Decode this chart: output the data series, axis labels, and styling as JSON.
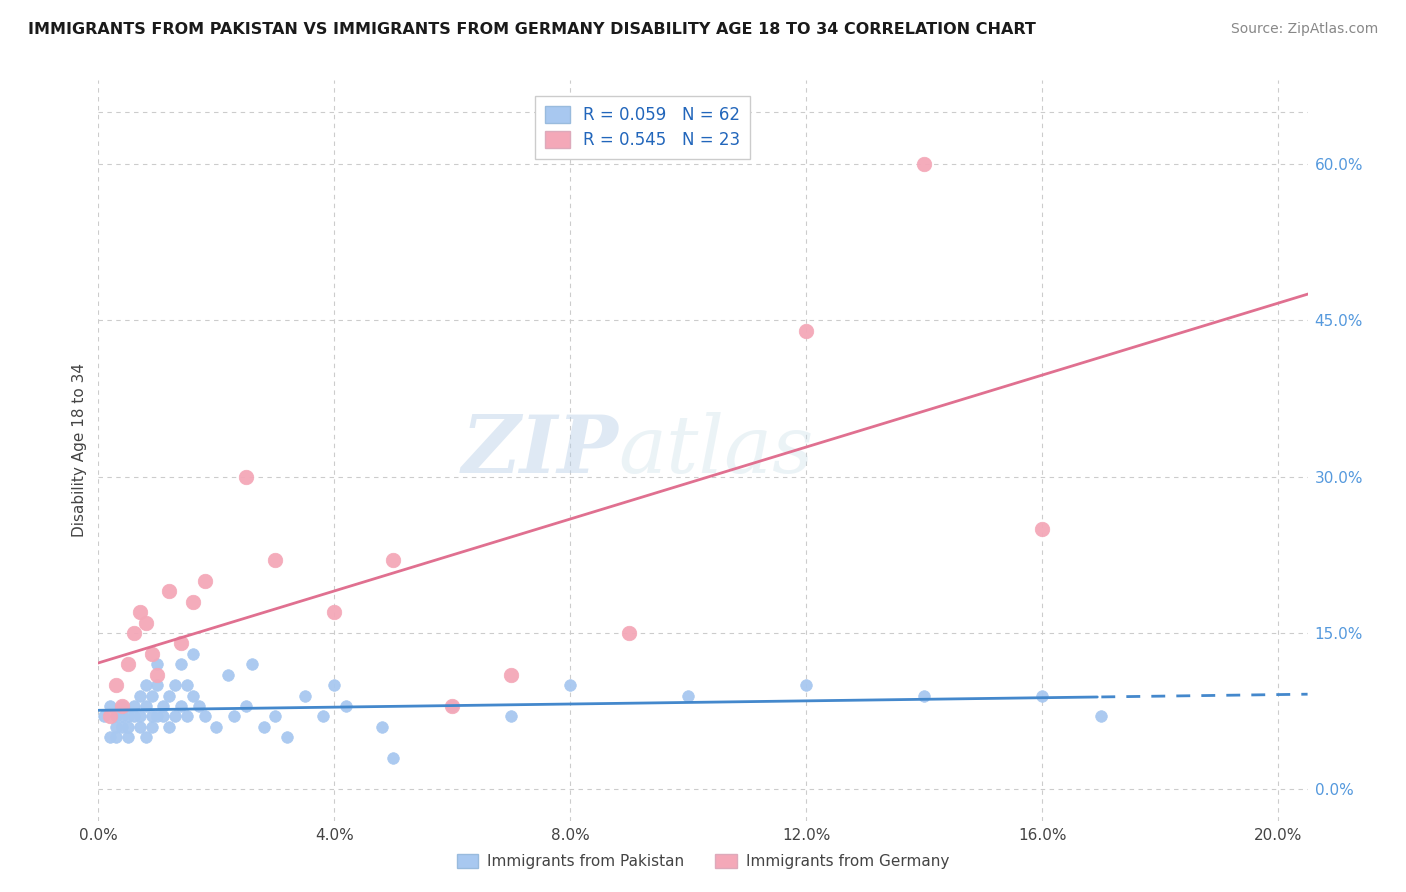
{
  "title": "IMMIGRANTS FROM PAKISTAN VS IMMIGRANTS FROM GERMANY DISABILITY AGE 18 TO 34 CORRELATION CHART",
  "source": "Source: ZipAtlas.com",
  "ylabel": "Disability Age 18 to 34",
  "legend_label1": "Immigrants from Pakistan",
  "legend_label2": "Immigrants from Germany",
  "r1": 0.059,
  "n1": 62,
  "r2": 0.545,
  "n2": 23,
  "color_pakistan": "#a8c8f0",
  "color_germany": "#f4a8b8",
  "line_color_pakistan": "#4488cc",
  "line_color_germany": "#e07090",
  "background_color": "#ffffff",
  "grid_color": "#cccccc",
  "watermark_zip": "ZIP",
  "watermark_atlas": "atlas",
  "xlim": [
    0.0,
    0.205
  ],
  "ylim": [
    -0.03,
    0.68
  ],
  "xticks": [
    0.0,
    0.04,
    0.08,
    0.12,
    0.16,
    0.2
  ],
  "yticks_right": [
    0.0,
    0.15,
    0.3,
    0.45,
    0.6
  ],
  "pakistan_x": [
    0.001,
    0.002,
    0.002,
    0.003,
    0.003,
    0.003,
    0.004,
    0.004,
    0.004,
    0.005,
    0.005,
    0.005,
    0.006,
    0.006,
    0.007,
    0.007,
    0.007,
    0.008,
    0.008,
    0.008,
    0.009,
    0.009,
    0.009,
    0.01,
    0.01,
    0.01,
    0.011,
    0.011,
    0.012,
    0.012,
    0.013,
    0.013,
    0.014,
    0.014,
    0.015,
    0.015,
    0.016,
    0.016,
    0.017,
    0.018,
    0.02,
    0.022,
    0.023,
    0.025,
    0.026,
    0.028,
    0.03,
    0.032,
    0.035,
    0.038,
    0.04,
    0.042,
    0.048,
    0.05,
    0.06,
    0.07,
    0.08,
    0.1,
    0.12,
    0.14,
    0.16,
    0.17
  ],
  "pakistan_y": [
    0.07,
    0.05,
    0.08,
    0.06,
    0.07,
    0.05,
    0.06,
    0.07,
    0.08,
    0.05,
    0.07,
    0.06,
    0.08,
    0.07,
    0.06,
    0.09,
    0.07,
    0.05,
    0.1,
    0.08,
    0.07,
    0.09,
    0.06,
    0.1,
    0.07,
    0.12,
    0.08,
    0.07,
    0.09,
    0.06,
    0.1,
    0.07,
    0.12,
    0.08,
    0.1,
    0.07,
    0.13,
    0.09,
    0.08,
    0.07,
    0.06,
    0.11,
    0.07,
    0.08,
    0.12,
    0.06,
    0.07,
    0.05,
    0.09,
    0.07,
    0.1,
    0.08,
    0.06,
    0.03,
    0.08,
    0.07,
    0.1,
    0.09,
    0.1,
    0.09,
    0.09,
    0.07
  ],
  "germany_x": [
    0.002,
    0.003,
    0.004,
    0.005,
    0.006,
    0.007,
    0.008,
    0.009,
    0.01,
    0.012,
    0.014,
    0.016,
    0.018,
    0.025,
    0.03,
    0.04,
    0.05,
    0.06,
    0.07,
    0.09,
    0.12,
    0.14,
    0.16
  ],
  "germany_y": [
    0.07,
    0.1,
    0.08,
    0.12,
    0.15,
    0.17,
    0.16,
    0.13,
    0.11,
    0.19,
    0.14,
    0.18,
    0.2,
    0.3,
    0.22,
    0.17,
    0.22,
    0.08,
    0.11,
    0.15,
    0.44,
    0.6,
    0.25
  ]
}
